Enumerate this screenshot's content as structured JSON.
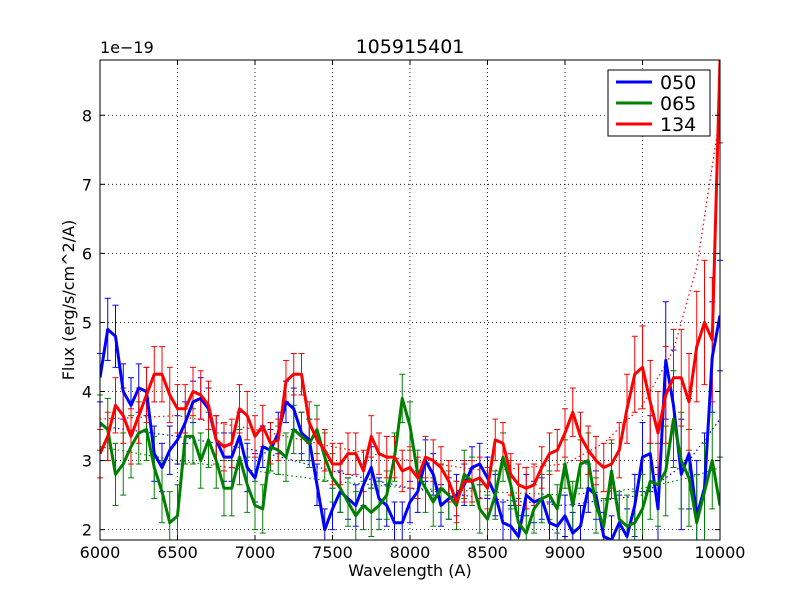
{
  "chart_data": {
    "type": "line",
    "title": "105915401",
    "xlabel": "Wavelength (A)",
    "ylabel": "Flux (erg/s/cm^2/A)",
    "y_offset_text": "1e−19",
    "xlim": [
      6000,
      10000
    ],
    "ylim": [
      1.85,
      8.8
    ],
    "xticks": [
      "6000",
      "6500",
      "7000",
      "7500",
      "8000",
      "8500",
      "9000",
      "9500",
      "10000"
    ],
    "yticks": [
      "2",
      "3",
      "4",
      "5",
      "6",
      "7",
      "8"
    ],
    "grid": true,
    "legend_position": "top-right",
    "series": [
      {
        "name": "050",
        "color": "#0000ff",
        "x": [
          6000,
          6050,
          6100,
          6150,
          6200,
          6250,
          6300,
          6350,
          6400,
          6450,
          6500,
          6550,
          6600,
          6650,
          6700,
          6750,
          6800,
          6850,
          6900,
          6950,
          7000,
          7050,
          7100,
          7150,
          7200,
          7250,
          7300,
          7350,
          7400,
          7450,
          7500,
          7550,
          7600,
          7650,
          7700,
          7750,
          7800,
          7850,
          7900,
          7950,
          8000,
          8050,
          8100,
          8150,
          8200,
          8250,
          8300,
          8350,
          8400,
          8450,
          8500,
          8550,
          8600,
          8650,
          8700,
          8750,
          8800,
          8850,
          8900,
          8950,
          9000,
          9050,
          9100,
          9150,
          9200,
          9250,
          9300,
          9350,
          9400,
          9450,
          9500,
          9550,
          9600,
          9650,
          9700,
          9750,
          9800,
          9850,
          9900,
          9950,
          10000
        ],
        "values": [
          4.2,
          4.9,
          4.8,
          4.0,
          3.8,
          4.05,
          4.0,
          3.1,
          2.9,
          3.15,
          3.3,
          3.55,
          3.85,
          3.9,
          3.75,
          3.3,
          3.05,
          3.05,
          3.35,
          2.9,
          2.75,
          3.2,
          3.15,
          3.4,
          3.85,
          3.75,
          3.4,
          3.3,
          2.65,
          2.0,
          2.3,
          2.55,
          2.45,
          2.35,
          2.65,
          2.9,
          2.45,
          2.35,
          2.1,
          2.1,
          2.4,
          2.55,
          3.0,
          2.8,
          2.35,
          2.45,
          2.5,
          2.65,
          2.9,
          2.95,
          2.75,
          2.5,
          2.1,
          2.05,
          1.9,
          2.5,
          2.4,
          2.45,
          2.1,
          2.05,
          2.2,
          1.95,
          2.05,
          2.6,
          2.5,
          1.9,
          1.85,
          2.1,
          1.9,
          2.35,
          3.05,
          3.1,
          2.3,
          4.45,
          3.8,
          2.8,
          3.1,
          2.2,
          2.6,
          4.5,
          5.1
        ],
        "errors": [
          0.35,
          0.45,
          0.45,
          0.4,
          0.4,
          0.35,
          0.35,
          0.4,
          0.35,
          0.35,
          0.35,
          0.3,
          0.3,
          0.3,
          0.3,
          0.35,
          0.35,
          0.35,
          0.35,
          0.35,
          0.35,
          0.3,
          0.3,
          0.3,
          0.3,
          0.3,
          0.3,
          0.3,
          0.3,
          0.3,
          0.3,
          0.3,
          0.3,
          0.3,
          0.3,
          0.3,
          0.3,
          0.3,
          0.3,
          0.3,
          0.3,
          0.3,
          0.3,
          0.3,
          0.3,
          0.3,
          0.3,
          0.3,
          0.3,
          0.3,
          0.3,
          0.3,
          0.3,
          0.3,
          0.3,
          0.3,
          0.3,
          0.3,
          0.3,
          0.3,
          0.3,
          0.3,
          0.3,
          0.35,
          0.35,
          0.35,
          0.35,
          0.4,
          0.4,
          0.45,
          0.5,
          0.55,
          0.6,
          0.85,
          0.8,
          0.8,
          0.8,
          0.8,
          0.8,
          0.8,
          0.8
        ]
      },
      {
        "name": "065",
        "color": "#008000",
        "x": [
          6000,
          6050,
          6100,
          6150,
          6200,
          6250,
          6300,
          6350,
          6400,
          6450,
          6500,
          6550,
          6600,
          6650,
          6700,
          6750,
          6800,
          6850,
          6900,
          6950,
          7000,
          7050,
          7100,
          7150,
          7200,
          7250,
          7300,
          7350,
          7400,
          7450,
          7500,
          7550,
          7600,
          7650,
          7700,
          7750,
          7800,
          7850,
          7900,
          7950,
          8000,
          8050,
          8100,
          8150,
          8200,
          8250,
          8300,
          8350,
          8400,
          8450,
          8500,
          8550,
          8600,
          8650,
          8700,
          8750,
          8800,
          8850,
          8900,
          8950,
          9000,
          9050,
          9100,
          9150,
          9200,
          9250,
          9300,
          9350,
          9400,
          9450,
          9500,
          9550,
          9600,
          9650,
          9700,
          9750,
          9800,
          9850,
          9900,
          9950,
          10000
        ],
        "values": [
          3.55,
          3.45,
          2.8,
          2.95,
          3.2,
          3.4,
          3.45,
          2.9,
          2.55,
          2.1,
          2.2,
          3.35,
          3.35,
          3.0,
          3.3,
          3.0,
          2.6,
          2.6,
          3.05,
          2.65,
          2.35,
          2.3,
          3.2,
          3.15,
          3.05,
          3.45,
          3.35,
          3.25,
          3.45,
          3.05,
          2.75,
          2.6,
          2.4,
          2.2,
          2.35,
          2.25,
          2.35,
          2.5,
          3.05,
          3.9,
          3.5,
          2.8,
          2.6,
          2.4,
          2.6,
          2.5,
          2.35,
          2.8,
          2.7,
          2.3,
          2.15,
          2.5,
          3.05,
          2.65,
          2.1,
          1.95,
          2.3,
          2.45,
          2.5,
          2.3,
          2.95,
          2.35,
          2.95,
          3.0,
          2.35,
          2.05,
          2.85,
          2.15,
          2.05,
          2.1,
          2.3,
          2.7,
          2.65,
          2.85,
          3.6,
          3.0,
          2.75,
          2.1,
          2.55,
          3.0,
          2.35
        ],
        "errors": [
          0.4,
          0.45,
          0.45,
          0.45,
          0.45,
          0.45,
          0.45,
          0.45,
          0.45,
          0.45,
          0.45,
          0.4,
          0.4,
          0.4,
          0.4,
          0.4,
          0.4,
          0.4,
          0.4,
          0.4,
          0.35,
          0.35,
          0.35,
          0.35,
          0.35,
          0.35,
          0.35,
          0.35,
          0.35,
          0.35,
          0.35,
          0.35,
          0.35,
          0.35,
          0.35,
          0.35,
          0.35,
          0.35,
          0.35,
          0.35,
          0.35,
          0.35,
          0.35,
          0.35,
          0.35,
          0.35,
          0.35,
          0.35,
          0.35,
          0.35,
          0.35,
          0.35,
          0.35,
          0.35,
          0.35,
          0.35,
          0.35,
          0.35,
          0.35,
          0.35,
          0.35,
          0.35,
          0.35,
          0.4,
          0.4,
          0.4,
          0.4,
          0.4,
          0.45,
          0.45,
          0.5,
          0.55,
          0.6,
          0.65,
          0.7,
          0.7,
          0.7,
          0.7,
          0.7,
          0.7,
          0.7
        ]
      },
      {
        "name": "134",
        "color": "#ff0000",
        "x": [
          6000,
          6050,
          6100,
          6150,
          6200,
          6250,
          6300,
          6350,
          6400,
          6450,
          6500,
          6550,
          6600,
          6650,
          6700,
          6750,
          6800,
          6850,
          6900,
          6950,
          7000,
          7050,
          7100,
          7150,
          7200,
          7250,
          7300,
          7350,
          7400,
          7450,
          7500,
          7550,
          7600,
          7650,
          7700,
          7750,
          7800,
          7850,
          7900,
          7950,
          8000,
          8050,
          8100,
          8150,
          8200,
          8250,
          8300,
          8350,
          8400,
          8450,
          8500,
          8550,
          8600,
          8650,
          8700,
          8750,
          8800,
          8850,
          8900,
          8950,
          9000,
          9050,
          9100,
          9150,
          9200,
          9250,
          9300,
          9350,
          9400,
          9450,
          9500,
          9550,
          9600,
          9650,
          9700,
          9750,
          9800,
          9850,
          9900,
          9950,
          10000
        ],
        "values": [
          3.1,
          3.35,
          3.8,
          3.65,
          3.35,
          3.65,
          3.95,
          4.25,
          4.25,
          3.95,
          3.75,
          3.75,
          4.0,
          3.95,
          3.8,
          3.3,
          3.2,
          3.25,
          3.75,
          3.65,
          3.35,
          3.5,
          3.25,
          3.3,
          4.15,
          4.25,
          4.25,
          3.55,
          3.3,
          3.15,
          2.95,
          2.95,
          3.1,
          3.1,
          2.85,
          3.35,
          3.1,
          3.05,
          3.05,
          2.85,
          2.9,
          2.75,
          3.05,
          3.0,
          2.9,
          2.7,
          2.4,
          2.7,
          2.7,
          2.75,
          2.6,
          3.3,
          3.25,
          2.8,
          2.65,
          2.6,
          2.65,
          2.9,
          3.1,
          3.15,
          3.4,
          3.7,
          3.35,
          3.15,
          3.0,
          2.9,
          2.95,
          3.15,
          3.75,
          4.25,
          4.35,
          3.85,
          3.4,
          3.95,
          4.2,
          4.2,
          3.85,
          4.65,
          5.0,
          4.75,
          8.8
        ],
        "errors": [
          0.35,
          0.35,
          0.4,
          0.4,
          0.4,
          0.4,
          0.4,
          0.4,
          0.4,
          0.4,
          0.35,
          0.35,
          0.35,
          0.35,
          0.35,
          0.35,
          0.35,
          0.35,
          0.35,
          0.35,
          0.3,
          0.3,
          0.3,
          0.3,
          0.3,
          0.3,
          0.3,
          0.3,
          0.3,
          0.3,
          0.3,
          0.3,
          0.3,
          0.3,
          0.3,
          0.3,
          0.3,
          0.3,
          0.3,
          0.3,
          0.3,
          0.3,
          0.3,
          0.3,
          0.3,
          0.3,
          0.3,
          0.3,
          0.3,
          0.3,
          0.3,
          0.3,
          0.3,
          0.3,
          0.3,
          0.3,
          0.3,
          0.3,
          0.3,
          0.3,
          0.35,
          0.35,
          0.35,
          0.35,
          0.35,
          0.35,
          0.35,
          0.4,
          0.5,
          0.55,
          0.6,
          0.6,
          0.6,
          0.7,
          0.7,
          0.7,
          0.7,
          0.8,
          0.9,
          0.9,
          1.2
        ]
      }
    ],
    "trends": [
      {
        "name": "050",
        "color": "#0000ff",
        "x": [
          6000,
          6500,
          7000,
          7500,
          8000,
          8500,
          9000,
          9500,
          9800,
          10000
        ],
        "values": [
          3.5,
          3.35,
          3.15,
          2.85,
          2.6,
          2.45,
          2.35,
          2.5,
          3.0,
          3.6
        ]
      },
      {
        "name": "065",
        "color": "#008000",
        "x": [
          6000,
          6500,
          7000,
          7500,
          8000,
          8500,
          9000,
          9500,
          9800,
          10000
        ],
        "values": [
          3.2,
          3.0,
          2.85,
          2.7,
          2.6,
          2.55,
          2.5,
          2.6,
          2.75,
          2.9
        ]
      },
      {
        "name": "134",
        "color": "#ff0000",
        "x": [
          6000,
          6500,
          7000,
          7500,
          8000,
          8500,
          9000,
          9250,
          9500,
          9700,
          9850,
          10000
        ],
        "values": [
          3.6,
          3.65,
          3.45,
          3.2,
          3.0,
          2.85,
          2.95,
          3.25,
          3.8,
          4.6,
          5.8,
          8.0
        ]
      }
    ]
  }
}
